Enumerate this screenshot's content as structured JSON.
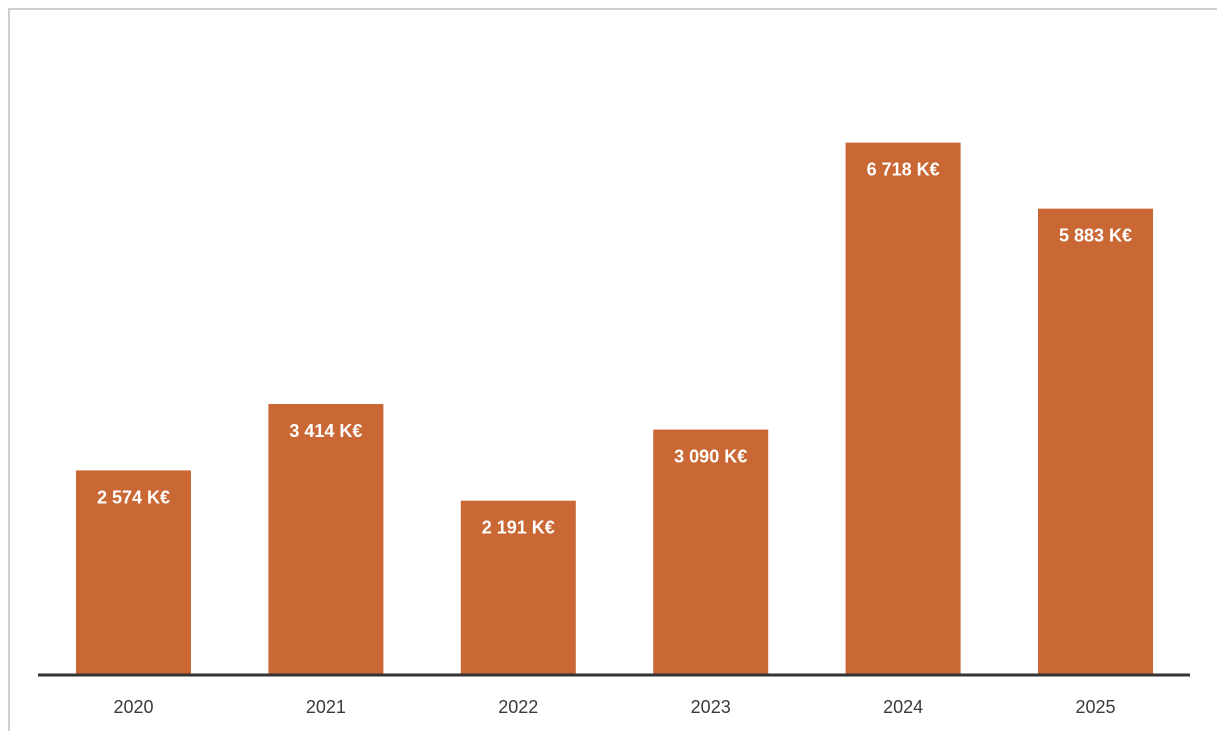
{
  "chart_data": {
    "type": "bar",
    "categories": [
      "2020",
      "2021",
      "2022",
      "2023",
      "2024",
      "2025"
    ],
    "values": [
      2574,
      3414,
      2191,
      3090,
      6718,
      5883
    ],
    "data_labels": [
      "2 574 K€",
      "3 414 K€",
      "2 191 K€",
      "3 090 K€",
      "6 718 K€",
      "5 883 K€"
    ],
    "title": "",
    "xlabel": "",
    "ylabel": "",
    "ylim": [
      0,
      8000
    ],
    "grid": false,
    "legend": "none",
    "colors": {
      "bar": "#c96834",
      "axis": "#333333",
      "tick_text": "#3a3a3a",
      "label_text": "#ffffff"
    }
  }
}
